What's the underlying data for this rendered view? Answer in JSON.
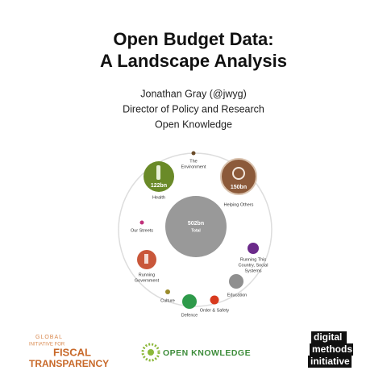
{
  "header": {
    "title_lines": [
      "Open Budget Data:",
      "A Landscape Analysis"
    ],
    "author": "Jonathan Gray (@jwyg)",
    "role": "Director of Policy and Research",
    "organization": "Open Knowledge"
  },
  "diagram": {
    "center": {
      "amount": "502bn",
      "label": "Total"
    },
    "nodes": [
      {
        "lines": [
          "The",
          "Environment"
        ]
      },
      {
        "amount": "122bn",
        "lines": [
          "Health"
        ]
      },
      {
        "amount": "150bn",
        "lines": [
          "Helping Others"
        ]
      },
      {
        "lines": [
          "Our Streets"
        ]
      },
      {
        "lines": [
          "Running This",
          "Country, Social",
          "Systems"
        ]
      },
      {
        "lines": [
          "Running",
          "Government"
        ]
      },
      {
        "lines": [
          "Education"
        ]
      },
      {
        "lines": [
          "Culture"
        ]
      },
      {
        "lines": [
          "Defence"
        ]
      },
      {
        "lines": [
          "Order & Safety"
        ]
      }
    ]
  },
  "logos": {
    "gift": [
      "GLOBAL",
      "INITIATIVE FOR",
      "FISCAL",
      "TRANSPARENCY"
    ],
    "okf": "OPEN KNOWLEDGE",
    "dmi": [
      "digital",
      "methods",
      "initiative"
    ]
  }
}
